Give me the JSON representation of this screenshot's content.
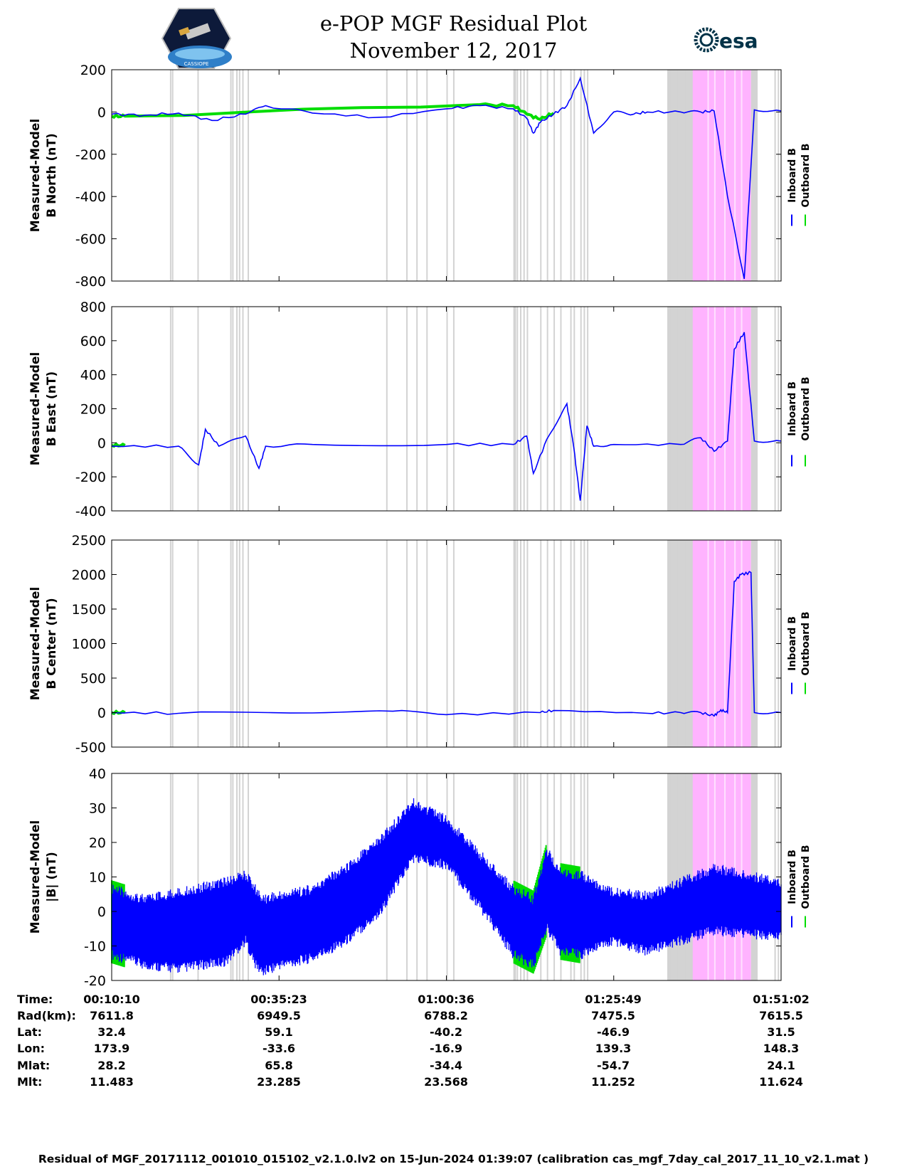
{
  "header": {
    "title": "e-POP MGF Residual Plot",
    "date": "November 12, 2017",
    "right_logo_text": "esa",
    "left_logo_text": "CASSIOPE"
  },
  "legend": {
    "inboard": "Inboard B",
    "outboard": "Outboard B"
  },
  "colors": {
    "inboard": "#0000ff",
    "outboard": "#00dd00",
    "gray_band": "#d3d3d3",
    "pink_band": "#ffb3ff"
  },
  "x_ticks": [
    "00:10:10",
    "00:35:23",
    "01:00:36",
    "01:25:49",
    "01:51:02"
  ],
  "chart_data": [
    {
      "type": "line",
      "id": "north",
      "ylabel_1": "Measured-Model",
      "ylabel_2": "B North (nT)",
      "ylim": [
        -800,
        200
      ],
      "yticks": [
        "200",
        "0",
        "-200",
        "-400",
        "-600",
        "-800"
      ],
      "series": [
        {
          "name": "Inboard B",
          "x": [
            0,
            0.05,
            0.1,
            0.15,
            0.2,
            0.23,
            0.3,
            0.4,
            0.5,
            0.55,
            0.6,
            0.62,
            0.63,
            0.64,
            0.66,
            0.68,
            0.7,
            0.72,
            0.75,
            0.78,
            0.8,
            0.85,
            0.88,
            0.9,
            0.92,
            0.945,
            0.96,
            1
          ],
          "values": [
            -10,
            -15,
            -5,
            -40,
            -10,
            30,
            -5,
            -25,
            15,
            30,
            15,
            -30,
            -100,
            -50,
            -10,
            30,
            160,
            -100,
            0,
            -10,
            0,
            0,
            0,
            5,
            -400,
            -790,
            10,
            5
          ]
        },
        {
          "name": "Outboard B",
          "x": [
            0,
            0.02,
            0.55,
            0.6,
            0.62,
            0.64,
            0.66
          ],
          "values": [
            -20,
            -20,
            35,
            30,
            -10,
            -35,
            -5
          ]
        }
      ]
    },
    {
      "type": "line",
      "id": "east",
      "ylabel_1": "Measured-Model",
      "ylabel_2": "B East (nT)",
      "ylim": [
        -400,
        800
      ],
      "yticks": [
        "800",
        "600",
        "400",
        "200",
        "0",
        "-200",
        "-400"
      ],
      "series": [
        {
          "name": "Inboard B",
          "x": [
            0,
            0.1,
            0.13,
            0.14,
            0.16,
            0.2,
            0.22,
            0.23,
            0.3,
            0.5,
            0.6,
            0.62,
            0.63,
            0.65,
            0.68,
            0.69,
            0.7,
            0.71,
            0.72,
            0.75,
            0.85,
            0.88,
            0.9,
            0.92,
            0.93,
            0.945,
            0.96,
            1
          ],
          "values": [
            -20,
            -20,
            -130,
            80,
            -20,
            40,
            -150,
            -20,
            -10,
            -10,
            -10,
            40,
            -180,
            20,
            230,
            -20,
            -340,
            100,
            -20,
            -10,
            -10,
            30,
            -50,
            10,
            550,
            650,
            10,
            10
          ]
        },
        {
          "name": "Outboard B",
          "x": [
            0,
            0.02
          ],
          "values": [
            -15,
            -15
          ]
        }
      ]
    },
    {
      "type": "line",
      "id": "center",
      "ylabel_1": "Measured-Model",
      "ylabel_2": "B Center (nT)",
      "ylim": [
        -500,
        2500
      ],
      "yticks": [
        "2500",
        "2000",
        "1500",
        "1000",
        "500",
        "0",
        "-500"
      ],
      "series": [
        {
          "name": "Inboard B",
          "x": [
            0,
            0.1,
            0.3,
            0.42,
            0.5,
            0.64,
            0.66,
            0.8,
            0.85,
            0.88,
            0.9,
            0.91,
            0.92,
            0.93,
            0.94,
            0.955,
            0.96,
            1
          ],
          "values": [
            0,
            -10,
            -5,
            20,
            -30,
            0,
            30,
            -10,
            0,
            0,
            -50,
            40,
            0,
            1900,
            2000,
            2030,
            0,
            0
          ]
        },
        {
          "name": "Outboard B",
          "x": [
            0,
            0.02
          ],
          "values": [
            0,
            0
          ]
        }
      ]
    },
    {
      "type": "line",
      "id": "total",
      "ylabel_1": "Measured-Model",
      "ylabel_2": "|B| (nT)",
      "ylim": [
        -20,
        40
      ],
      "yticks": [
        "40",
        "30",
        "20",
        "10",
        "0",
        "-10",
        "-20"
      ],
      "envelope_x": [
        0,
        0.05,
        0.1,
        0.17,
        0.2,
        0.215,
        0.225,
        0.25,
        0.3,
        0.35,
        0.4,
        0.45,
        0.5,
        0.55,
        0.6,
        0.63,
        0.65,
        0.67,
        0.7,
        0.75,
        0.8,
        0.85,
        0.9,
        0.95,
        1
      ],
      "envelope_upper": [
        8,
        5,
        7,
        10,
        12,
        8,
        5,
        6,
        8,
        14,
        22,
        33,
        28,
        18,
        8,
        5,
        19,
        13,
        12,
        7,
        6,
        10,
        14,
        12,
        10
      ],
      "envelope_lower": [
        -14,
        -17,
        -18,
        -16,
        -10,
        -17,
        -19,
        -17,
        -15,
        -10,
        -2,
        14,
        12,
        0,
        -14,
        -17,
        -6,
        -13,
        -14,
        -10,
        -13,
        -10,
        -7,
        -8,
        -9
      ],
      "series": [
        {
          "name": "Inboard B",
          "values": []
        },
        {
          "name": "Outboard B",
          "values": []
        }
      ]
    }
  ],
  "footer": {
    "labels": [
      "Time:",
      "Rad(km):",
      "Lat:",
      "Lon:",
      "Mlat:",
      "Mlt:"
    ],
    "columns": [
      [
        "00:10:10",
        "7611.8",
        "32.4",
        "173.9",
        "28.2",
        "11.483"
      ],
      [
        "00:35:23",
        "6949.5",
        "59.1",
        "-33.6",
        "65.8",
        "23.285"
      ],
      [
        "01:00:36",
        "6788.2",
        "-40.2",
        "-16.9",
        "-34.4",
        "23.568"
      ],
      [
        "01:25:49",
        "7475.5",
        "-46.9",
        "139.3",
        "-54.7",
        "11.252"
      ],
      [
        "01:51:02",
        "7615.5",
        "31.5",
        "148.3",
        "24.1",
        "11.624"
      ]
    ],
    "caption": "Residual of MGF_20171112_001010_015102_v2.1.0.lv2 on 15-Jun-2024 01:39:07 (calibration cas_mgf_7day_cal_2017_11_10_v2.1.mat )"
  }
}
